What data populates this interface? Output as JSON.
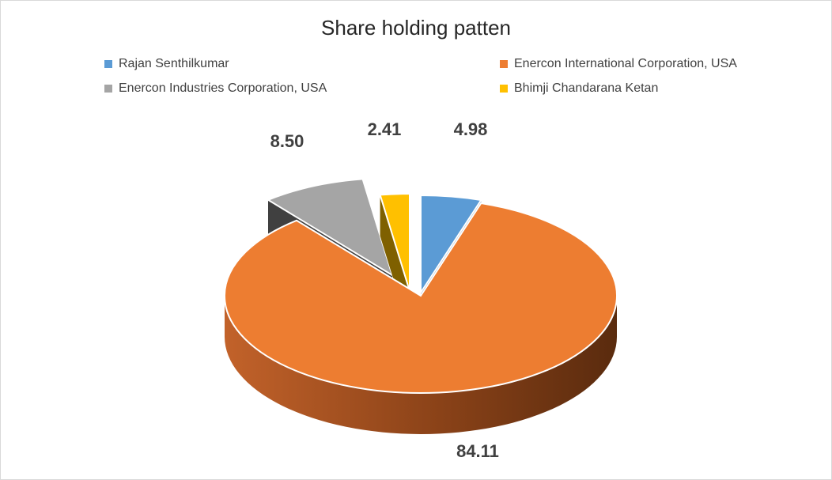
{
  "chart_data": {
    "type": "pie",
    "title": "Share holding patten",
    "legend_placement": "top",
    "three_d": true,
    "slices": [
      {
        "label": "Rajan Senthilkumar",
        "value": 4.98,
        "value_label": "4.98",
        "color": "#5B9BD5",
        "exploded": true
      },
      {
        "label": "Enercon International Corporation, USA",
        "value": 84.11,
        "value_label": "84.11",
        "color": "#ED7D31",
        "exploded": false
      },
      {
        "label": "Enercon Industries Corporation, USA",
        "value": 8.5,
        "value_label": "8.50",
        "color": "#A5A5A5",
        "exploded": true
      },
      {
        "label": "Bhimji Chandarana Ketan",
        "value": 2.41,
        "value_label": "2.41",
        "color": "#FFC000",
        "exploded": true
      }
    ]
  }
}
